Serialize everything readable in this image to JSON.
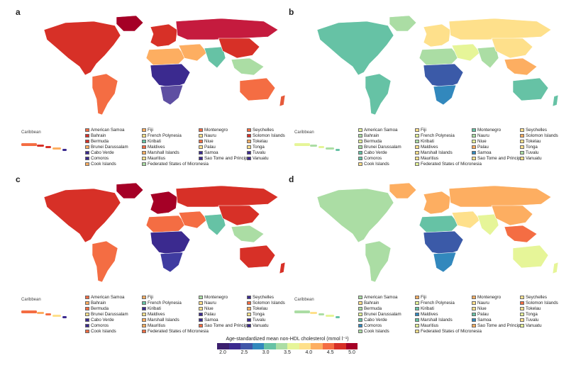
{
  "panels": [
    {
      "label": "a",
      "caribbean_label": "Caribbean",
      "colors": {
        "north_america": "#d73027",
        "greenland": "#a50026",
        "south_america": "#f46d43",
        "europe": "#d73027",
        "russia": "#c51b3e",
        "africa_north": "#fdae61",
        "africa_central": "#3b2a8f",
        "africa_south": "#5e4fa2",
        "middle_east": "#fdae61",
        "south_asia": "#66c2a5",
        "east_asia": "#d73027",
        "southeast_asia": "#abdda4",
        "australia": "#f46d43",
        "new_zealand": "#e65a3a"
      },
      "islands": [
        "#f46d43",
        "#d73027",
        "#d73027",
        "#fdae61",
        "#3b2a8f",
        "#3b2a8f",
        "#fdae61",
        "#fdae61",
        "#fee08b",
        "#66c2a5",
        "#f46d43",
        "#fdae61",
        "#fee08b",
        "#abdda4",
        "#f46d43",
        "#fee08b",
        "#f46d43",
        "#fee08b",
        "#3b2a8f",
        "#3b2a8f",
        "#f46d43",
        "#d73027",
        "#fdae61",
        "#fee08b",
        "#3b2a8f",
        "#3b2a8f"
      ]
    },
    {
      "label": "b",
      "caribbean_label": "Caribbean",
      "colors": {
        "north_america": "#66c2a5",
        "greenland": "#abdda4",
        "south_america": "#66c2a5",
        "europe": "#fee08b",
        "russia": "#fee08b",
        "africa_north": "#abdda4",
        "africa_central": "#3b5aa8",
        "africa_south": "#3288bd",
        "middle_east": "#e6f598",
        "south_asia": "#abdda4",
        "east_asia": "#fee08b",
        "southeast_asia": "#fdae61",
        "australia": "#66c2a5",
        "new_zealand": "#66c2a5"
      },
      "islands": [
        "#e6f598",
        "#abdda4",
        "#e6f598",
        "#abdda4",
        "#66c2a5",
        "#66c2a5",
        "#fee08b",
        "#fee08b",
        "#e6f598",
        "#abdda4",
        "#fee08b",
        "#fee08b",
        "#fee08b",
        "#e6f598",
        "#66c2a5",
        "#abdda4",
        "#e6f598",
        "#fdae61",
        "#3288bd",
        "#fee08b",
        "#fee08b",
        "#fdae61",
        "#fee08b",
        "#fee08b",
        "#abdda4",
        "#fee08b"
      ]
    },
    {
      "label": "c",
      "caribbean_label": "Caribbean",
      "colors": {
        "north_america": "#d73027",
        "greenland": "#a50026",
        "south_america": "#f46d43",
        "europe": "#a50026",
        "russia": "#d73027",
        "africa_north": "#f46d43",
        "africa_central": "#3b2a8f",
        "africa_south": "#3f3ba0",
        "middle_east": "#f46d43",
        "south_asia": "#66c2a5",
        "east_asia": "#d73027",
        "southeast_asia": "#abdda4",
        "australia": "#d73027",
        "new_zealand": "#d73027"
      },
      "islands": [
        "#f46d43",
        "#fdae61",
        "#f46d43",
        "#fee08b",
        "#3b2a8f",
        "#3b2a8f",
        "#f46d43",
        "#fdae61",
        "#66c2a5",
        "#3b2a8f",
        "#fee08b",
        "#fdae61",
        "#fdae61",
        "#f46d43",
        "#abdda4",
        "#fee08b",
        "#fee08b",
        "#3b2a8f",
        "#3b2a8f",
        "#f46d43",
        "#3b2a8f",
        "#f46d43",
        "#fdae61",
        "#fee08b",
        "#3b2a8f",
        "#3b2a8f"
      ]
    },
    {
      "label": "d",
      "caribbean_label": "Caribbean",
      "colors": {
        "north_america": "#abdda4",
        "greenland": "#fdae61",
        "south_america": "#abdda4",
        "europe": "#fdae61",
        "russia": "#fdae61",
        "africa_north": "#66c2a5",
        "africa_central": "#3b5aa8",
        "africa_south": "#3288bd",
        "middle_east": "#fee08b",
        "south_asia": "#e6f598",
        "east_asia": "#fdae61",
        "southeast_asia": "#f46d43",
        "australia": "#e6f598",
        "new_zealand": "#e6f598"
      },
      "islands": [
        "#abdda4",
        "#fee08b",
        "#abdda4",
        "#e6f598",
        "#66c2a5",
        "#3288bd",
        "#abdda4",
        "#fdae61",
        "#e6f598",
        "#66c2a5",
        "#3288bd",
        "#66c2a5",
        "#e6f598",
        "#fee08b",
        "#fdae61",
        "#fee08b",
        "#fee08b",
        "#66c2a5",
        "#3288bd",
        "#fdae61",
        "#fee08b",
        "#f46d43",
        "#fee08b",
        "#e6f598",
        "#fee08b",
        "#e6f598"
      ]
    }
  ],
  "island_names": [
    "American Samoa",
    "Bahrain",
    "Bermuda",
    "Brunei Darussalam",
    "Cabo Verde",
    "Comoros",
    "Cook Islands",
    "Fiji",
    "French Polynesia",
    "Kiribati",
    "Maldives",
    "Marshall Islands",
    "Mauritius",
    "Federated States of Micronesia",
    "Montenegro",
    "Nauru",
    "Niue",
    "Palau",
    "Samoa",
    "Sao Tome and Principe",
    "Seychelles",
    "Solomon Islands",
    "Tokelau",
    "Tonga",
    "Tuvalu",
    "Vanuatu"
  ],
  "colorbar": {
    "title": "Age-standardized mean non-HDL cholesterol (mmol l⁻¹)",
    "colors": [
      "#3b1f6e",
      "#3b2a8f",
      "#3f56a8",
      "#3288bd",
      "#66c2a5",
      "#abdda4",
      "#e6f598",
      "#fee08b",
      "#fdae61",
      "#f46d43",
      "#d73027",
      "#a50026"
    ],
    "ticks": [
      "2.0",
      "2.5",
      "3.0",
      "3.5",
      "4.0",
      "4.5",
      "5.0"
    ]
  }
}
